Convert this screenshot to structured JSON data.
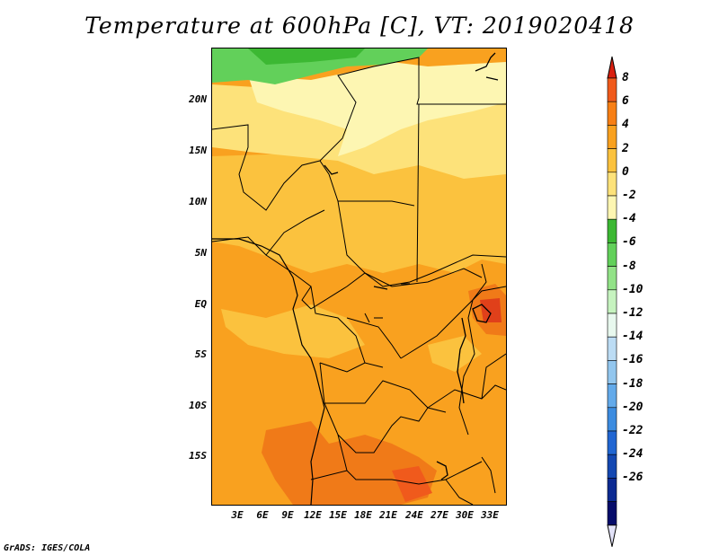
{
  "title": "Temperature at 600hPa [C], VT: 2019020418",
  "footer": "GrADS: IGES/COLA",
  "map": {
    "lat_labels": [
      "20N",
      "15N",
      "10N",
      "5N",
      "EQ",
      "5S",
      "10S",
      "15S"
    ],
    "lon_labels": [
      "3E",
      "6E",
      "9E",
      "12E",
      "15E",
      "18E",
      "21E",
      "24E",
      "27E",
      "30E",
      "33E"
    ],
    "lat_range": [
      -20,
      24.5
    ],
    "lon_range": [
      0,
      35
    ]
  },
  "colorbar": {
    "labels": [
      "8",
      "6",
      "4",
      "2",
      "0",
      "-2",
      "-4",
      "-6",
      "-8",
      "-10",
      "-12",
      "-14",
      "-16",
      "-18",
      "-20",
      "-22",
      "-24",
      "-26"
    ],
    "colors": [
      "#d92010",
      "#f05a1c",
      "#f77f15",
      "#f9a11f",
      "#fbc23e",
      "#fde27a",
      "#fdf6b2",
      "#3cb833",
      "#62d05a",
      "#92e287",
      "#c6f3bf",
      "#e8f8ee",
      "#bcdcf4",
      "#92c6ee",
      "#63aaea",
      "#3c8ce0",
      "#2166d2",
      "#1448b2",
      "#0c2a92",
      "#060c6a",
      "#e2e2f8"
    ]
  },
  "chart_data": {
    "type": "heatmap",
    "title": "Temperature at 600hPa [C], VT: 2019020418",
    "variable": "Temperature at 600hPa",
    "units": "C",
    "valid_time": "2019020418",
    "x_axis": "longitude",
    "y_axis": "latitude",
    "xlim": [
      0,
      35
    ],
    "ylim": [
      -20,
      24.5
    ],
    "x_ticks": [
      "3E",
      "6E",
      "9E",
      "12E",
      "15E",
      "18E",
      "21E",
      "24E",
      "27E",
      "30E",
      "33E"
    ],
    "y_ticks": [
      "20N",
      "15N",
      "10N",
      "5N",
      "EQ",
      "5S",
      "10S",
      "15S"
    ],
    "levels": [
      -26,
      -24,
      -22,
      -20,
      -18,
      -16,
      -14,
      -12,
      -10,
      -8,
      -6,
      -4,
      -2,
      0,
      2,
      4,
      6,
      8
    ],
    "regions": [
      {
        "area": "northern Sahel (around 22-24N, 0-18E)",
        "range": "-6 to -4"
      },
      {
        "area": "central Sahara / Sudan belt (15-22N)",
        "range": "-4 to 0"
      },
      {
        "area": "West Africa / Central Africa (0-10N)",
        "range": "0 to 4"
      },
      {
        "area": "Angola / Namibia / Zambia (10-20S)",
        "range": "4 to 6"
      },
      {
        "area": "Lake Victoria region (around 0-3S, 30-33E)",
        "range": "6 to 8"
      }
    ]
  }
}
